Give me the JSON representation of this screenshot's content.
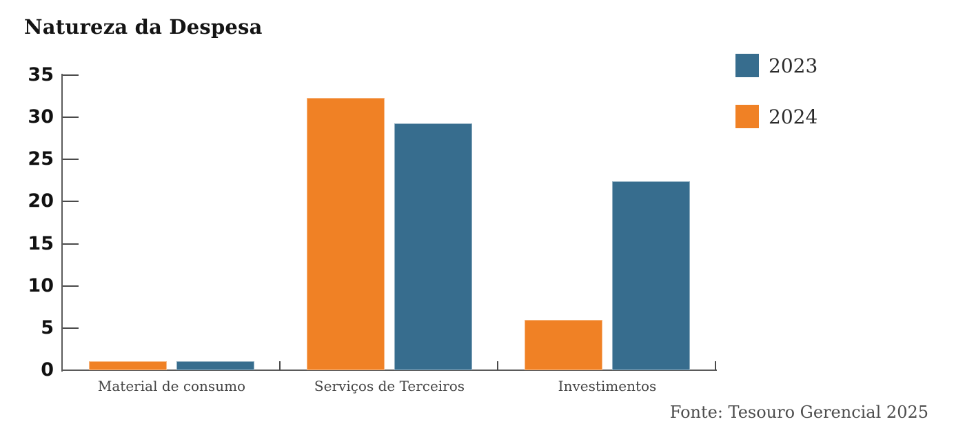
{
  "title": "Natureza da Despesa",
  "source_note": "Fonte: Tesouro Gerencial 2025",
  "colors": {
    "series_2023": "#376d8e",
    "series_2024": "#f08125",
    "axis": "#5a5a5a",
    "tick_label": "#111111",
    "category_label": "#454545",
    "source_text": "#4d4d4d",
    "background": "#ffffff"
  },
  "legend": {
    "position": "top-right",
    "items": [
      {
        "label": "2023",
        "color": "#376d8e"
      },
      {
        "label": "2024",
        "color": "#f08125"
      }
    ]
  },
  "chart_data": {
    "type": "bar",
    "title": "Natureza da Despesa",
    "categories": [
      "Material de consumo",
      "Serviços de Terceiros",
      "Investimentos"
    ],
    "series": [
      {
        "name": "2024",
        "color": "#f08125",
        "values": [
          1.1,
          32.3,
          6.0
        ]
      },
      {
        "name": "2023",
        "color": "#376d8e",
        "values": [
          1.1,
          29.3,
          22.4
        ]
      }
    ],
    "legend_order": [
      "2023",
      "2024"
    ],
    "xlabel": "",
    "ylabel": "",
    "ylim": [
      0,
      35
    ],
    "yticks": [
      0,
      5,
      10,
      15,
      20,
      25,
      30,
      35
    ],
    "grid": false,
    "legend_position": "top-right",
    "source": "Fonte: Tesouro Gerencial 2025"
  }
}
